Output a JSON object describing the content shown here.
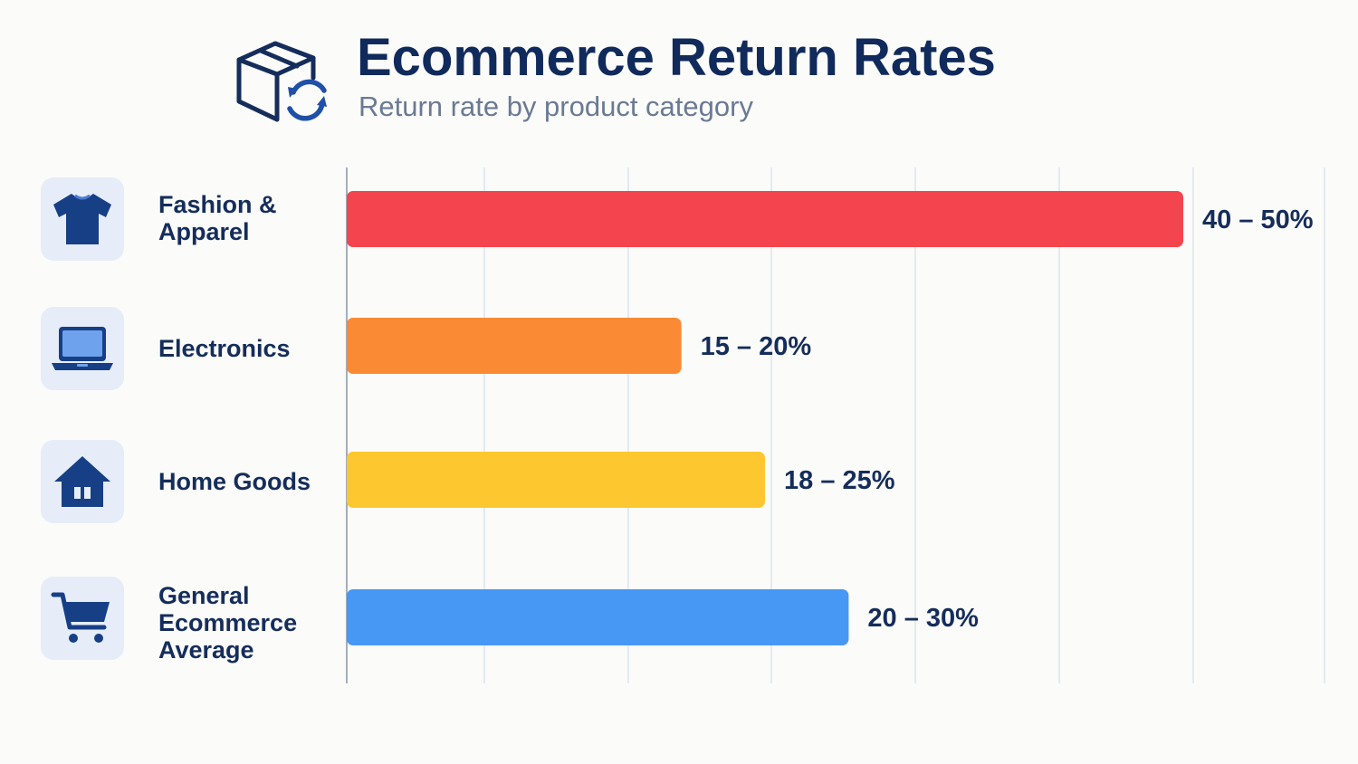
{
  "header": {
    "title": "Ecommerce Return Rates",
    "subtitle": "Return rate by product category",
    "icon": "box-return-icon"
  },
  "categories": [
    {
      "label": "Fashion & Apparel",
      "icon": "tshirt-icon",
      "value_label": "40 – 50%"
    },
    {
      "label": "Electronics",
      "icon": "laptop-icon",
      "value_label": "15 – 20%"
    },
    {
      "label": "Home Goods",
      "icon": "house-icon",
      "value_label": "18 – 25%"
    },
    {
      "label": "General Ecommerce Average",
      "icon": "shopping-cart-icon",
      "value_label": "20 – 30%"
    }
  ],
  "chart_data": {
    "type": "bar",
    "orientation": "horizontal",
    "title": "Ecommerce Return Rates",
    "subtitle": "Return rate by product category",
    "categories": [
      "Fashion & Apparel",
      "Electronics",
      "Home Goods",
      "General Ecommerce Average"
    ],
    "values": [
      50,
      20,
      25,
      30
    ],
    "ranges": [
      [
        40,
        50
      ],
      [
        15,
        20
      ],
      [
        18,
        25
      ],
      [
        20,
        30
      ]
    ],
    "data_labels": [
      "40 – 50%",
      "15 – 20%",
      "18 – 25%",
      "20 – 30%"
    ],
    "colors": [
      "#f4444e",
      "#fb8a35",
      "#fdc82f",
      "#4797f4"
    ],
    "xlim": [
      0,
      52
    ],
    "grid": true,
    "legend": "none"
  },
  "colors": {
    "title": "#102a5c",
    "subtitle": "#6a7a94",
    "icon": "#1f4690",
    "icon_bg": "#e6edf8"
  }
}
